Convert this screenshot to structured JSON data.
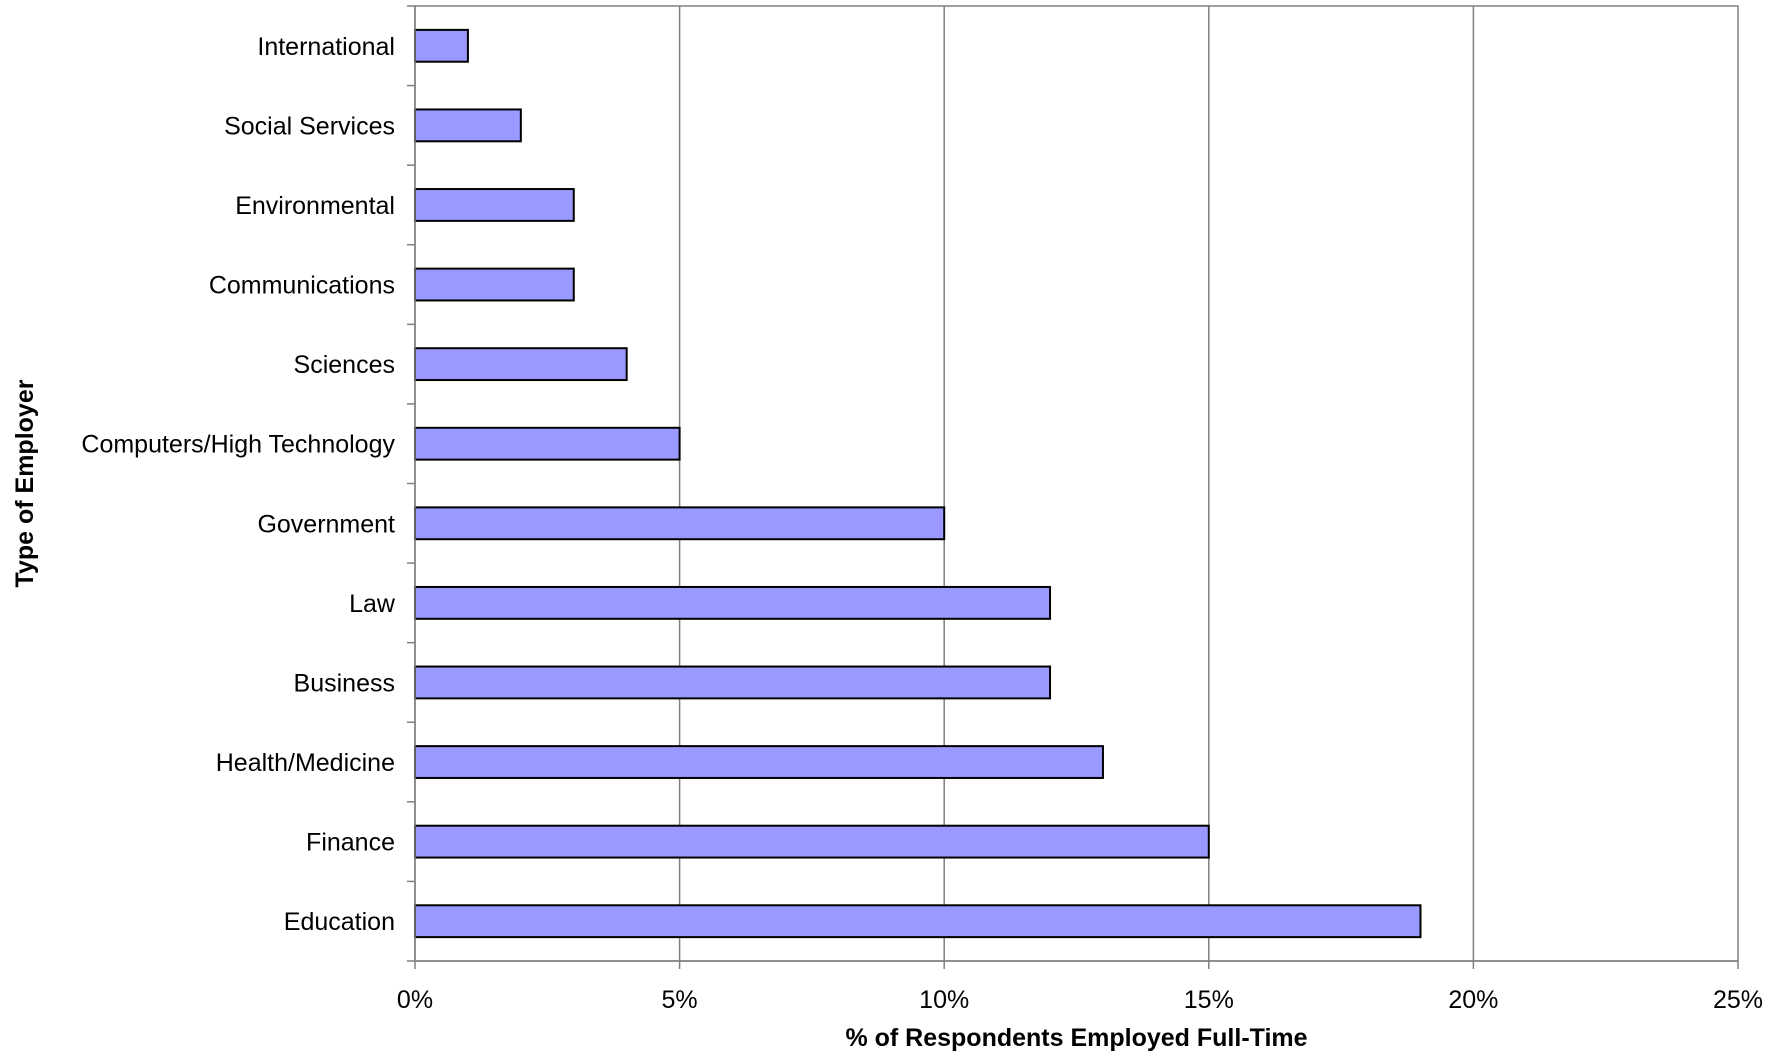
{
  "chart_data": {
    "type": "bar",
    "orientation": "horizontal",
    "xlabel": "% of Respondents Employed Full-Time",
    "ylabel": "Type of Employer",
    "xlim": [
      0,
      25
    ],
    "x_ticks": [
      "0%",
      "5%",
      "10%",
      "15%",
      "20%",
      "25%"
    ],
    "x_tick_values": [
      0,
      5,
      10,
      15,
      20,
      25
    ],
    "grid": "vertical",
    "legend": "none",
    "bar_color": "#9999ff",
    "categories": [
      "International",
      "Social Services",
      "Environmental",
      "Communications",
      "Sciences",
      "Computers/High Technology",
      "Government",
      "Law",
      "Business",
      "Health/Medicine",
      "Finance",
      "Education"
    ],
    "values": [
      1,
      2,
      3,
      3,
      4,
      5,
      10,
      12,
      12,
      13,
      15,
      19
    ]
  }
}
